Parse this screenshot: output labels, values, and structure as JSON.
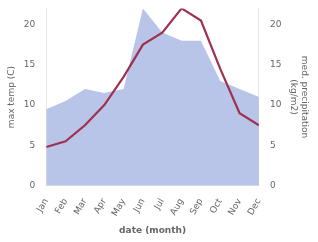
{
  "chart_data": {
    "type": "line",
    "categories": [
      "Jan",
      "Feb",
      "Mar",
      "Apr",
      "May",
      "Jun",
      "Jul",
      "Aug",
      "Sep",
      "Oct",
      "Nov",
      "Dec"
    ],
    "series": [
      {
        "type": "line",
        "color": "#a03050",
        "values": [
          4.8,
          5.5,
          7.5,
          10.0,
          13.5,
          17.5,
          19.0,
          22.0,
          20.5,
          14.5,
          9.0,
          7.5
        ]
      },
      {
        "type": "area",
        "color": "#b8c4e8",
        "axis": "y2",
        "values": [
          9.5,
          10.5,
          12.0,
          11.5,
          12.0,
          22.0,
          19.0,
          18.0,
          18.0,
          13.0,
          12.0,
          11.0
        ]
      }
    ],
    "xlabel": "date (month)",
    "ylabel": "max temp (C)",
    "y2label": "med. precipitation\n(kg/m2)",
    "ylim": [
      0,
      22
    ],
    "yticks": [
      0,
      5,
      10,
      15,
      20
    ],
    "y2lim": [
      0,
      22
    ],
    "y2ticks": [
      0,
      5,
      10,
      15,
      20
    ],
    "grid": false
  }
}
